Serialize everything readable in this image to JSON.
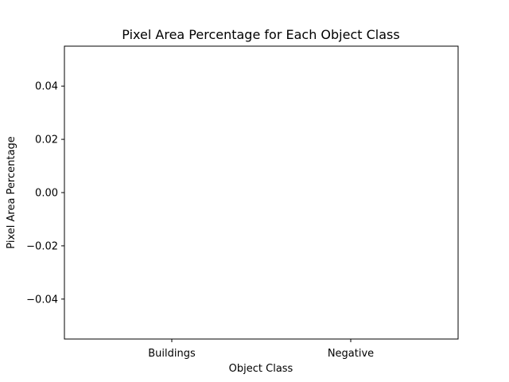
{
  "chart_data": {
    "type": "bar",
    "title": "Pixel Area Percentage for Each Object Class",
    "xlabel": "Object Class",
    "ylabel": "Pixel Area Percentage",
    "categories": [
      "Buildings",
      "Negative"
    ],
    "values": [
      0,
      0
    ],
    "ylim": [
      -0.055,
      0.055
    ],
    "yticks": [
      0.04,
      0.02,
      0.0,
      -0.02,
      -0.04
    ],
    "ytick_labels": [
      "0.04",
      "0.02",
      "0.00",
      "−0.02",
      "−0.04"
    ],
    "grid": false,
    "legend": "none"
  }
}
